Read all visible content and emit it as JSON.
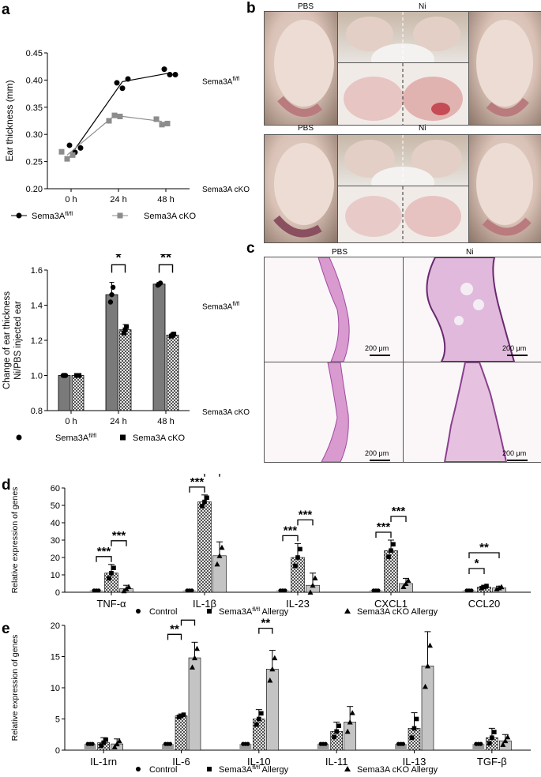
{
  "panels": {
    "a": "a",
    "b": "b",
    "c": "c",
    "d": "d",
    "e": "e"
  },
  "chart_a_top": {
    "type": "line",
    "ylabel": "Ear thickness (mm)",
    "ylim": [
      0.2,
      0.45
    ],
    "yticks": [
      "0.20",
      "0.25",
      "0.30",
      "0.35",
      "0.40",
      "0.45"
    ],
    "categories": [
      "0 h",
      "24 h",
      "48 h"
    ],
    "series": [
      {
        "name": "Sema3A",
        "sup": "fl/fl",
        "marker": "circle",
        "color": "#000000",
        "mean": [
          0.273,
          0.397,
          0.413
        ],
        "points": [
          [
            0.28,
            0.267,
            0.275
          ],
          [
            0.395,
            0.385,
            0.402
          ],
          [
            0.42,
            0.41,
            0.41
          ]
        ]
      },
      {
        "name": "Sema3A cKO",
        "sup": "",
        "marker": "square",
        "color": "#8c8c8c",
        "mean": [
          0.262,
          0.335,
          0.324
        ],
        "points": [
          [
            0.268,
            0.255,
            0.262
          ],
          [
            0.325,
            0.335,
            0.333
          ],
          [
            0.328,
            0.318,
            0.32
          ]
        ]
      }
    ]
  },
  "chart_a_bottom": {
    "type": "bar",
    "ylabel1": "Change of ear thickness",
    "ylabel2": "Ni/PBS injected ear",
    "ylim": [
      0.8,
      1.6
    ],
    "yticks": [
      "0.8",
      "1.0",
      "1.2",
      "1.4",
      "1.6"
    ],
    "categories": [
      "0 h",
      "24 h",
      "48 h"
    ],
    "series": [
      {
        "name": "Sema3A",
        "sup": "fl/fl",
        "values": [
          1.0,
          1.46,
          1.52
        ],
        "err": [
          0,
          0.07,
          0.01
        ]
      },
      {
        "name": "Sema3A cKO",
        "sup": "",
        "values": [
          1.0,
          1.26,
          1.23
        ],
        "err": [
          0,
          0.03,
          0.01
        ]
      }
    ],
    "sig": [
      {
        "cat": 1,
        "text": "*"
      },
      {
        "cat": 2,
        "text": "**"
      }
    ]
  },
  "photos_b": {
    "group1_label": "Sema3A",
    "group1_sup": "fl/fl",
    "group2_label": "Sema3A cKO",
    "pbs": "PBS",
    "ni": "Ni"
  },
  "histology_c": {
    "pbs": "PBS",
    "ni": "Ni",
    "row1_label": "Sema3A",
    "row1_sup": "fl/fl",
    "row2_label": "Sema3A cKO",
    "scale": "200 μm"
  },
  "chart_d": {
    "type": "bar",
    "ylabel": "Relative expression of genes",
    "ylim": [
      0,
      60
    ],
    "yticks": [
      "0",
      "10",
      "20",
      "30",
      "40",
      "50",
      "60"
    ],
    "categories": [
      "TNF-α",
      "IL-1β",
      "IL-23",
      "CXCL1",
      "CCL20"
    ],
    "series": [
      {
        "name": "Control",
        "values": [
          1,
          1,
          1,
          1,
          1
        ],
        "err": [
          0,
          0,
          0,
          0,
          0
        ]
      },
      {
        "name": "Sema3A",
        "sup": "fl/fl",
        "suffix": " Allergy",
        "values": [
          11,
          52,
          20,
          24,
          3
        ],
        "err": [
          5,
          4,
          8,
          6,
          1
        ]
      },
      {
        "name": "Sema3A cKO Allergy",
        "values": [
          2,
          21,
          4,
          5,
          2.5
        ],
        "err": [
          2,
          8,
          7,
          3,
          1
        ]
      }
    ],
    "sig": [
      {
        "cat": 0,
        "from": 0,
        "to": 1,
        "level": 1,
        "text": "***"
      },
      {
        "cat": 0,
        "from": 1,
        "to": 2,
        "level": 2,
        "text": "***"
      },
      {
        "cat": 1,
        "from": 0,
        "to": 1,
        "level": 1,
        "text": "***"
      },
      {
        "cat": 1,
        "from": 1,
        "to": 2,
        "level": 2,
        "text": "***"
      },
      {
        "cat": 1,
        "from": 0,
        "to": 2,
        "level": 3,
        "text": "***"
      },
      {
        "cat": 2,
        "from": 0,
        "to": 1,
        "level": 1,
        "text": "***"
      },
      {
        "cat": 2,
        "from": 1,
        "to": 2,
        "level": 2,
        "text": "***"
      },
      {
        "cat": 3,
        "from": 0,
        "to": 1,
        "level": 1,
        "text": "***"
      },
      {
        "cat": 3,
        "from": 1,
        "to": 2,
        "level": 2,
        "text": "***"
      },
      {
        "cat": 4,
        "from": 0,
        "to": 1,
        "level": 1,
        "text": "*"
      },
      {
        "cat": 4,
        "from": 0,
        "to": 2,
        "level": 2,
        "text": "**"
      }
    ]
  },
  "chart_e": {
    "type": "bar",
    "ylabel": "Relative expression of genes",
    "ylim": [
      0,
      20
    ],
    "yticks": [
      "0",
      "5",
      "10",
      "15",
      "20"
    ],
    "categories": [
      "IL-1rn",
      "IL-6",
      "IL-10",
      "IL-11",
      "IL-13",
      "TGF-β"
    ],
    "series": [
      {
        "name": "Control",
        "values": [
          1,
          1,
          1,
          1,
          1,
          1
        ],
        "err": [
          0,
          0,
          0,
          0,
          0,
          0
        ]
      },
      {
        "name": "Sema3A",
        "sup": "fl/fl",
        "suffix": " Allergy",
        "values": [
          1.2,
          5.5,
          5,
          3,
          3.5,
          2
        ],
        "err": [
          0.8,
          0.3,
          1.5,
          1.5,
          2.5,
          1.5
        ]
      },
      {
        "name": "Sema3A cKO Allergy",
        "values": [
          1,
          14.8,
          13,
          4.5,
          13.5,
          1.5
        ],
        "err": [
          0.8,
          2.5,
          3,
          2.5,
          5.5,
          1
        ]
      }
    ],
    "sig": [
      {
        "cat": 1,
        "from": 0,
        "to": 1,
        "level": 1,
        "text": "**"
      },
      {
        "cat": 1,
        "from": 1,
        "to": 2,
        "level": 2,
        "text": "**"
      },
      {
        "cat": 2,
        "from": 1,
        "to": 2,
        "level": 2,
        "text": "**"
      },
      {
        "cat": 4,
        "from": 1,
        "to": 2,
        "level": 2,
        "text": "*"
      }
    ]
  }
}
